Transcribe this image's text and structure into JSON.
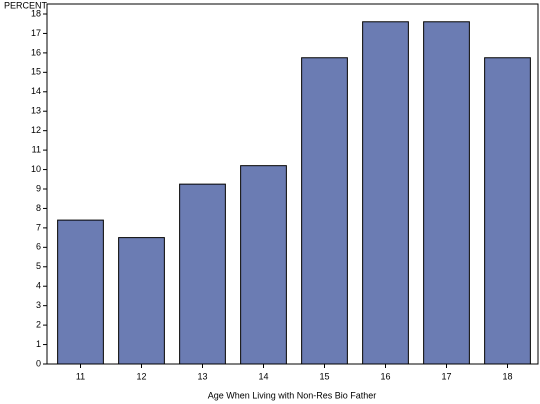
{
  "chart_data": {
    "type": "bar",
    "y_label": "PERCENT",
    "x_label": "Age When Living with Non-Res Bio Father",
    "categories": [
      "11",
      "12",
      "13",
      "14",
      "15",
      "16",
      "17",
      "18"
    ],
    "values": [
      7.4,
      6.5,
      9.25,
      10.2,
      15.75,
      17.6,
      17.6,
      15.75
    ],
    "color": "#6b7cb3",
    "ylim": [
      0,
      18
    ],
    "yticks": [
      0,
      1,
      2,
      3,
      4,
      5,
      6,
      7,
      8,
      9,
      10,
      11,
      12,
      13,
      14,
      15,
      16,
      17,
      18
    ]
  }
}
